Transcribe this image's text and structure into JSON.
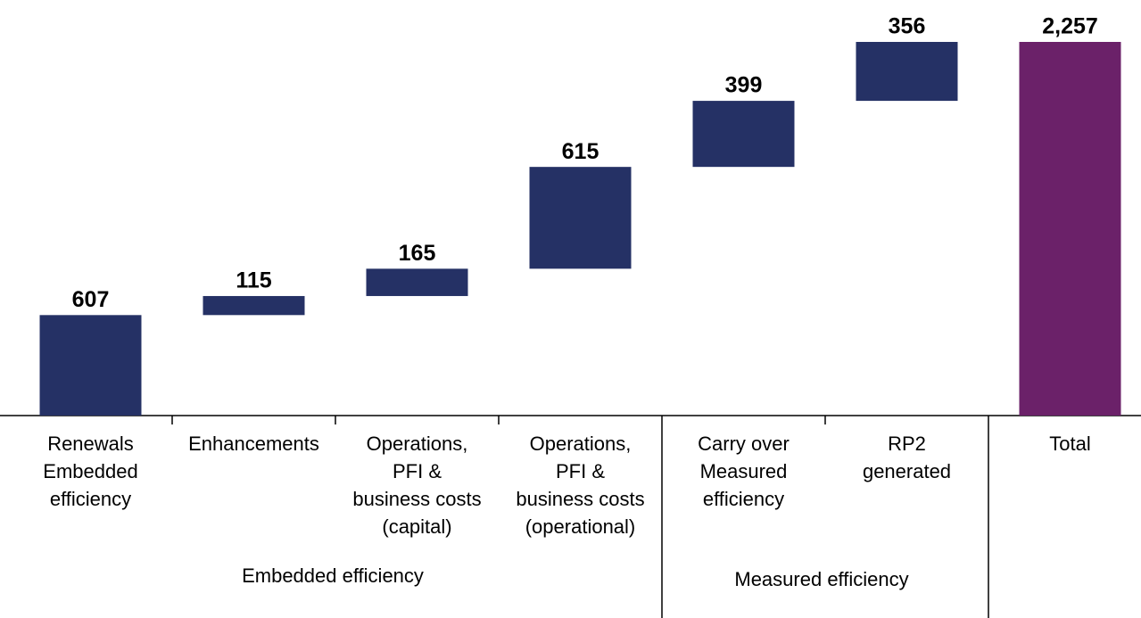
{
  "chart_data": {
    "type": "waterfall",
    "categories": [
      [
        "Renewals",
        "Embedded",
        "efficiency"
      ],
      [
        "Enhancements"
      ],
      [
        "Operations,",
        "PFI &",
        "business costs",
        "(capital)"
      ],
      [
        "Operations,",
        "PFI &",
        "business costs",
        "(operational)"
      ],
      [
        "Carry over",
        "Measured",
        "efficiency"
      ],
      [
        "RP2",
        "generated"
      ],
      [
        "Total"
      ]
    ],
    "values": [
      607,
      115,
      165,
      615,
      399,
      356,
      2257
    ],
    "value_labels": [
      "607",
      "115",
      "165",
      "615",
      "399",
      "356",
      "2,257"
    ],
    "color": "#253165",
    "total_color": "#6b2169",
    "groups": [
      "Embedded  efficiency",
      "Measured efficiency"
    ]
  }
}
